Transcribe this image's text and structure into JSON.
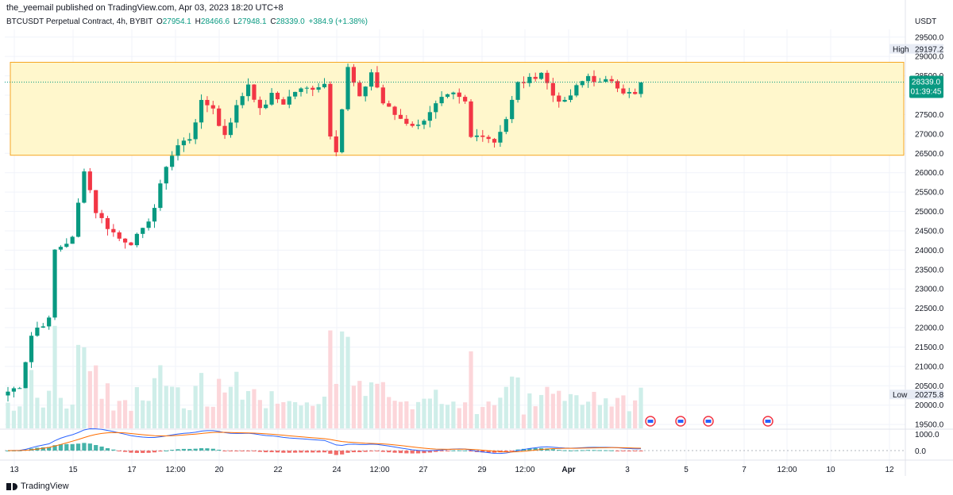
{
  "header": {
    "published": "the_yeemail published on TradingView.com, Apr 03, 2023 18:20 UTC+8",
    "currency": "USDT"
  },
  "legend": {
    "symbol": "BTCUSDT Perpetual Contract, 4h, BYBIT",
    "o_label": "O",
    "o_value": "27954.1",
    "h_label": "H",
    "h_value": "28466.6",
    "l_label": "L",
    "l_value": "27948.1",
    "c_label": "C",
    "c_value": "28339.0",
    "change": "+384.9 (+1.38%)"
  },
  "footer": {
    "brand": "TradingView"
  },
  "colors": {
    "up": "#089981",
    "down": "#f23645",
    "up_vol": "#cfeee9",
    "down_vol": "#fcd6da",
    "zone_fill": "#fff7cc",
    "zone_stroke": "#f5a623",
    "macd": "#2962ff",
    "signal": "#ff6d00",
    "grid": "#f0f3fa"
  },
  "chart_data": {
    "type": "candlestick",
    "title": "BTCUSDT Perpetual Contract, 4h, BYBIT",
    "ylim": [
      19400,
      29700
    ],
    "y_ticks": [
      "29500.0",
      "29000.0",
      "28500.0",
      "28000.0",
      "27500.0",
      "27000.0",
      "26500.0",
      "26000.0",
      "25500.0",
      "25000.0",
      "24500.0",
      "24000.0",
      "23500.0",
      "23000.0",
      "22500.0",
      "22000.0",
      "21500.0",
      "21000.0",
      "20500.0",
      "20000.0",
      "19500.0"
    ],
    "x_ticks": [
      "13",
      "15",
      "17",
      "12:00",
      "20",
      "22",
      "24",
      "12:00",
      "27",
      "29",
      "12:00",
      "Apr",
      "3",
      "5",
      "7",
      "12:00",
      "10",
      "12"
    ],
    "price_labels": {
      "high_label": "High",
      "high_value": "29197.2",
      "low_label": "Low",
      "low_value": "20275.8",
      "last_value": "28339.0",
      "countdown": "01:39:45"
    },
    "zone": {
      "top": 28850,
      "bottom": 26450
    },
    "anchors": [
      [
        0,
        20350
      ],
      [
        2,
        20500
      ],
      [
        4,
        21800
      ],
      [
        5,
        22000
      ],
      [
        7,
        22200
      ],
      [
        8,
        24000
      ],
      [
        11,
        24300
      ],
      [
        13,
        26100
      ],
      [
        15,
        25000
      ],
      [
        17,
        24600
      ],
      [
        19,
        24300
      ],
      [
        21,
        24200
      ],
      [
        23,
        24500
      ],
      [
        24,
        24800
      ],
      [
        25,
        25100
      ],
      [
        27,
        26200
      ],
      [
        29,
        26700
      ],
      [
        31,
        26900
      ],
      [
        33,
        27800
      ],
      [
        35,
        27700
      ],
      [
        36,
        27200
      ],
      [
        37,
        27000
      ],
      [
        39,
        27700
      ],
      [
        41,
        28300
      ],
      [
        43,
        27600
      ],
      [
        45,
        28000
      ],
      [
        47,
        27800
      ],
      [
        49,
        28100
      ],
      [
        52,
        28200
      ],
      [
        54,
        28300
      ],
      [
        55,
        27000
      ],
      [
        56,
        26600
      ],
      [
        58,
        28700
      ],
      [
        60,
        27900
      ],
      [
        62,
        28600
      ],
      [
        64,
        27800
      ],
      [
        66,
        27500
      ],
      [
        68,
        27300
      ],
      [
        70,
        27200
      ],
      [
        72,
        27600
      ],
      [
        74,
        27900
      ],
      [
        76,
        28000
      ],
      [
        78,
        27800
      ],
      [
        79,
        26900
      ],
      [
        81,
        27000
      ],
      [
        83,
        26800
      ],
      [
        85,
        27400
      ],
      [
        87,
        28300
      ],
      [
        89,
        28400
      ],
      [
        91,
        28600
      ],
      [
        93,
        28000
      ],
      [
        95,
        27800
      ],
      [
        97,
        28200
      ],
      [
        99,
        28500
      ],
      [
        101,
        28300
      ],
      [
        103,
        28400
      ],
      [
        105,
        28100
      ],
      [
        107,
        28000
      ],
      [
        108,
        28330
      ]
    ],
    "volume_scale_labels": [
      "1000.0",
      "0.0"
    ],
    "event_count": 4
  }
}
